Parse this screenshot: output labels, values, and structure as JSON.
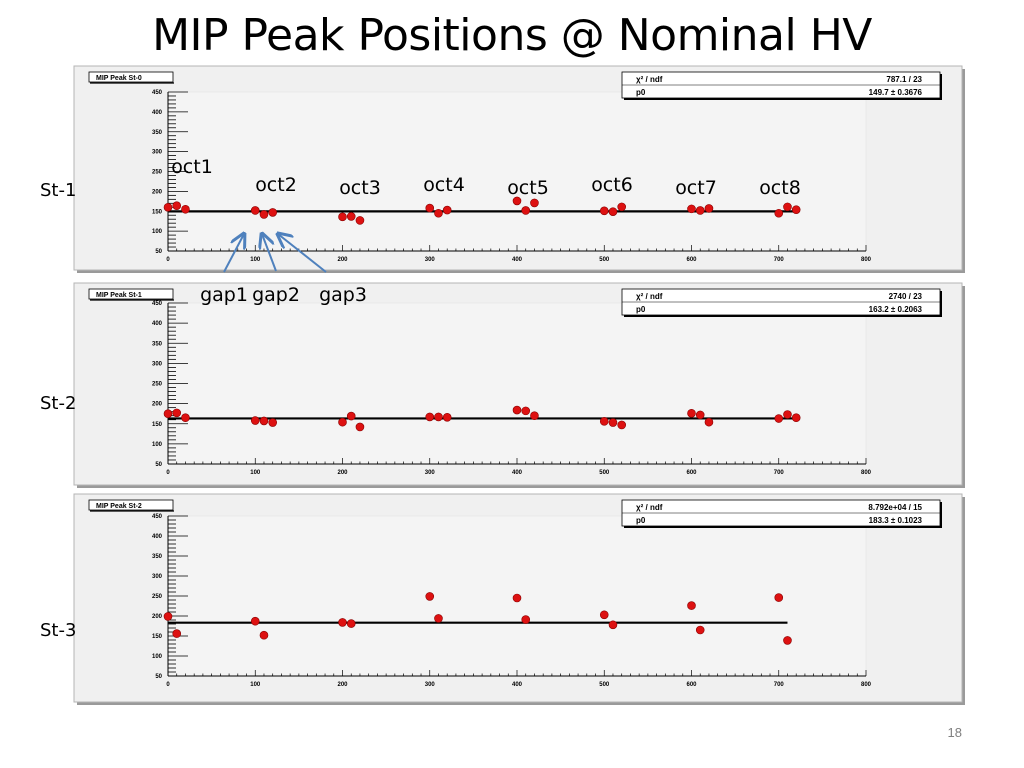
{
  "slide": {
    "title": "MIP Peak Positions @ Nominal HV",
    "page_number": "18"
  },
  "colors": {
    "marker": "#dd1111",
    "fit_line": "#000000",
    "frame": "#c8c8c8",
    "arrow": "#4f81bd"
  },
  "octant_labels": [
    "oct1",
    "oct2",
    "oct3",
    "oct4",
    "oct5",
    "oct6",
    "oct7",
    "oct8"
  ],
  "gap_labels": [
    "gap1",
    "gap2",
    "gap3"
  ],
  "chart_data": [
    {
      "type": "scatter",
      "row_label": "St-1",
      "title": "MIP Peak St-0",
      "stats": {
        "chi2_label": "χ² / ndf",
        "chi2_value": "787.1 / 23",
        "p0_label": "p0",
        "p0_value": "149.7 ± 0.3676"
      },
      "fit_value": 149.7,
      "fit_xrange": [
        0,
        720
      ],
      "xlim": [
        0,
        800
      ],
      "ylim": [
        50,
        450
      ],
      "xticks": [
        0,
        100,
        200,
        300,
        400,
        500,
        600,
        700,
        800
      ],
      "yticks": [
        50,
        100,
        150,
        200,
        250,
        300,
        350,
        400,
        450
      ],
      "points": [
        [
          0,
          160
        ],
        [
          10,
          164
        ],
        [
          20,
          155
        ],
        [
          100,
          152
        ],
        [
          110,
          142
        ],
        [
          120,
          147
        ],
        [
          200,
          136
        ],
        [
          210,
          137
        ],
        [
          220,
          127
        ],
        [
          300,
          158
        ],
        [
          310,
          145
        ],
        [
          320,
          153
        ],
        [
          400,
          176
        ],
        [
          410,
          152
        ],
        [
          420,
          171
        ],
        [
          500,
          151
        ],
        [
          510,
          149
        ],
        [
          520,
          161
        ],
        [
          600,
          156
        ],
        [
          610,
          152
        ],
        [
          620,
          157
        ],
        [
          700,
          145
        ],
        [
          710,
          161
        ],
        [
          720,
          154
        ]
      ]
    },
    {
      "type": "scatter",
      "row_label": "St-2",
      "title": "MIP Peak St-1",
      "stats": {
        "chi2_label": "χ² / ndf",
        "chi2_value": "2740 / 23",
        "p0_label": "p0",
        "p0_value": "163.2 ± 0.2063"
      },
      "fit_value": 163.2,
      "fit_xrange": [
        0,
        720
      ],
      "xlim": [
        0,
        800
      ],
      "ylim": [
        50,
        450
      ],
      "xticks": [
        0,
        100,
        200,
        300,
        400,
        500,
        600,
        700,
        800
      ],
      "yticks": [
        50,
        100,
        150,
        200,
        250,
        300,
        350,
        400,
        450
      ],
      "points": [
        [
          0,
          175
        ],
        [
          10,
          177
        ],
        [
          20,
          165
        ],
        [
          100,
          158
        ],
        [
          110,
          157
        ],
        [
          120,
          153
        ],
        [
          200,
          154
        ],
        [
          210,
          169
        ],
        [
          220,
          142
        ],
        [
          300,
          167
        ],
        [
          310,
          167
        ],
        [
          320,
          166
        ],
        [
          400,
          184
        ],
        [
          410,
          182
        ],
        [
          420,
          170
        ],
        [
          500,
          156
        ],
        [
          510,
          153
        ],
        [
          520,
          147
        ],
        [
          600,
          176
        ],
        [
          610,
          172
        ],
        [
          620,
          154
        ],
        [
          700,
          163
        ],
        [
          710,
          173
        ],
        [
          720,
          165
        ]
      ]
    },
    {
      "type": "scatter",
      "row_label": "St-3",
      "title": "MIP Peak St-2",
      "stats": {
        "chi2_label": "χ² / ndf",
        "chi2_value": "8.792e+04 / 15",
        "p0_label": "p0",
        "p0_value": "183.3 ± 0.1023"
      },
      "fit_value": 183.3,
      "fit_xrange": [
        0,
        710
      ],
      "xlim": [
        0,
        800
      ],
      "ylim": [
        50,
        450
      ],
      "xticks": [
        0,
        100,
        200,
        300,
        400,
        500,
        600,
        700,
        800
      ],
      "yticks": [
        50,
        100,
        150,
        200,
        250,
        300,
        350,
        400,
        450
      ],
      "points": [
        [
          0,
          199
        ],
        [
          10,
          156
        ],
        [
          100,
          187
        ],
        [
          110,
          152
        ],
        [
          200,
          184
        ],
        [
          210,
          181
        ],
        [
          300,
          249
        ],
        [
          310,
          194
        ],
        [
          400,
          245
        ],
        [
          410,
          191
        ],
        [
          500,
          203
        ],
        [
          510,
          178
        ],
        [
          600,
          226
        ],
        [
          610,
          165
        ],
        [
          700,
          246
        ],
        [
          710,
          139
        ]
      ]
    }
  ]
}
